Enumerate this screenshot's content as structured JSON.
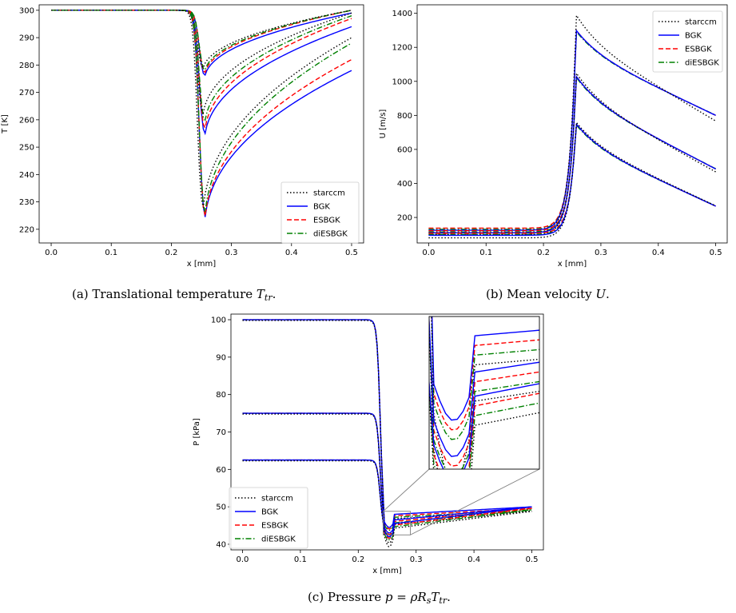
{
  "legend_labels": [
    "starccm",
    "BGK",
    "ESBGK",
    "diESBGK"
  ],
  "styles": [
    {
      "color": "#000000",
      "dash": "1.5,2.5"
    },
    {
      "color": "#0000ff",
      "dash": ""
    },
    {
      "color": "#ff0000",
      "dash": "6,3"
    },
    {
      "color": "#008000",
      "dash": "7,2.5,1.5,2.5"
    }
  ],
  "chart_data": [
    {
      "type": "line",
      "xlabel": "x [mm]",
      "ylabel": "T [K]",
      "xlim": [
        -0.02,
        0.52
      ],
      "ylim": [
        215,
        302
      ],
      "xticks": [
        0.0,
        0.1,
        0.2,
        0.3,
        0.4,
        0.5
      ],
      "yticks": [
        220,
        230,
        240,
        250,
        260,
        270,
        280,
        290,
        300
      ],
      "legend_position": "lower-right",
      "caption_parts": [
        {
          "t": "(a) Translational temperature ",
          "i": false
        },
        {
          "t": "T",
          "i": true
        },
        {
          "t": "tr",
          "i": true,
          "sub": true
        },
        {
          "t": ".",
          "i": false
        }
      ],
      "groups": [
        {
          "pre": 300,
          "bgk": {
            "min": 274,
            "end": 299
          },
          "esbgk": {
            "min": 275,
            "end": 300
          },
          "diesbgk": {
            "min": 276,
            "end": 300
          },
          "starccm": {
            "min": 277,
            "end": 300
          }
        },
        {
          "pre": 300,
          "bgk": {
            "min": 251,
            "end": 294
          },
          "esbgk": {
            "min": 253,
            "end": 297
          },
          "diesbgk": {
            "min": 256,
            "end": 298
          },
          "starccm": {
            "min": 259,
            "end": 299
          }
        },
        {
          "pre": 300,
          "bgk": {
            "min": 219,
            "end": 278
          },
          "esbgk": {
            "min": 219,
            "end": 282
          },
          "diesbgk": {
            "min": 220,
            "end": 288
          },
          "starccm": {
            "min": 222,
            "end": 290
          }
        }
      ]
    },
    {
      "type": "line",
      "xlabel": "x [mm]",
      "ylabel": "U [m/s]",
      "xlim": [
        -0.02,
        0.52
      ],
      "ylim": [
        50,
        1450
      ],
      "xticks": [
        0.0,
        0.1,
        0.2,
        0.3,
        0.4,
        0.5
      ],
      "yticks": [
        200,
        400,
        600,
        800,
        1000,
        1200,
        1400
      ],
      "legend_position": "upper-right",
      "caption_parts": [
        {
          "t": "(b) Mean velocity ",
          "i": false
        },
        {
          "t": "U",
          "i": true
        },
        {
          "t": ".",
          "i": false
        }
      ],
      "groups": [
        {
          "pre": 125,
          "peak": 1300,
          "end": 690,
          "starccm_pre": 110,
          "starccm_peak": 1390,
          "starccm_end": 630
        },
        {
          "pre": 110,
          "peak": 1030,
          "end": 365,
          "starccm_pre": 100,
          "starccm_peak": 1050,
          "starccm_end": 340
        },
        {
          "pre": 95,
          "peak": 750,
          "end": 160,
          "starccm_pre": 80,
          "starccm_peak": 760,
          "starccm_end": 160
        }
      ]
    },
    {
      "type": "line",
      "xlabel": "x [mm]",
      "ylabel": "P [kPa]",
      "xlim": [
        -0.02,
        0.52
      ],
      "ylim": [
        38.5,
        101.5
      ],
      "xticks": [
        0.0,
        0.1,
        0.2,
        0.3,
        0.4,
        0.5
      ],
      "yticks": [
        40,
        50,
        60,
        70,
        80,
        90,
        100
      ],
      "legend_position": "lower-left",
      "inset": true,
      "caption_parts": [
        {
          "t": "(c) Pressure ",
          "i": false
        },
        {
          "t": "p",
          "i": true
        },
        {
          "t": " = ",
          "i": false
        },
        {
          "t": "ρR",
          "i": true
        },
        {
          "t": "s",
          "i": true,
          "sub": true
        },
        {
          "t": "T",
          "i": true
        },
        {
          "t": "tr",
          "i": true,
          "sub": true
        },
        {
          "t": ".",
          "i": false
        }
      ],
      "groups": [
        {
          "pre": 100,
          "post": 48,
          "end": 50
        },
        {
          "pre": 75,
          "post": 46.5,
          "end": 50
        },
        {
          "pre": 62.5,
          "post": 45.5,
          "end": 50
        }
      ]
    }
  ]
}
